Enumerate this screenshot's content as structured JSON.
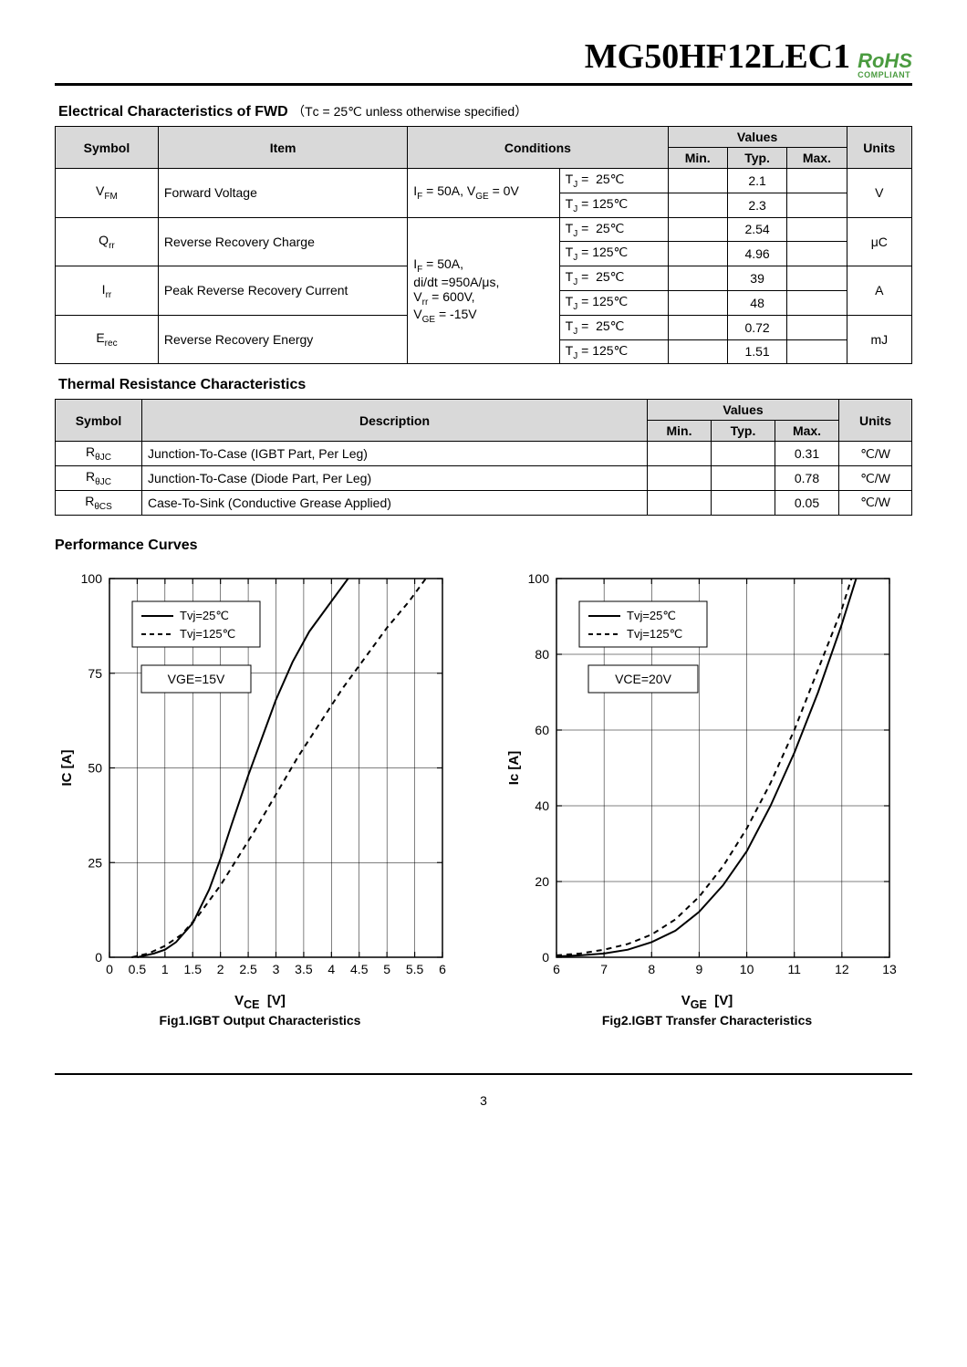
{
  "header": {
    "part_number": "MG50HF12LEC1",
    "rohs_main": "RoHS",
    "rohs_sub": "COMPLIANT"
  },
  "fwd_section": {
    "title": "Electrical Characteristics of FWD",
    "note": "（Tᴄ = 25℃ unless otherwise specified）",
    "headers": {
      "symbol": "Symbol",
      "item": "Item",
      "conditions": "Conditions",
      "values": "Values",
      "min": "Min.",
      "typ": "Typ.",
      "max": "Max.",
      "units": "Units"
    },
    "cond_shared_1": "I_F = 50A, V_GE = 0V",
    "cond_shared_2a": "I_F = 50A,",
    "cond_shared_2b": "di/dt =950A/μs,",
    "cond_shared_2c": "V_rr = 600V,",
    "cond_shared_2d": "V_GE = -15V",
    "tj25": "T_J =  25℃",
    "tj125": "T_J = 125℃",
    "rows": [
      {
        "symbol": "V_FM",
        "item": "Forward Voltage",
        "typ25": "2.1",
        "typ125": "2.3",
        "units": "V"
      },
      {
        "symbol": "Q_rr",
        "item": "Reverse Recovery Charge",
        "typ25": "2.54",
        "typ125": "4.96",
        "units": "μC"
      },
      {
        "symbol": "I_rr",
        "item": "Peak Reverse Recovery Current",
        "typ25": "39",
        "typ125": "48",
        "units": "A"
      },
      {
        "symbol": "E_rec",
        "item": "Reverse Recovery Energy",
        "typ25": "0.72",
        "typ125": "1.51",
        "units": "mJ"
      }
    ]
  },
  "thermal_section": {
    "title": "Thermal Resistance Characteristics",
    "headers": {
      "symbol": "Symbol",
      "description": "Description",
      "values": "Values",
      "min": "Min.",
      "typ": "Typ.",
      "max": "Max.",
      "units": "Units"
    },
    "rows": [
      {
        "symbol": "R_θJC",
        "description": "Junction-To-Case (IGBT Part, Per Leg)",
        "max": "0.31",
        "units": "℃/W"
      },
      {
        "symbol": "R_θJC",
        "description": "Junction-To-Case (Diode Part, Per Leg)",
        "max": "0.78",
        "units": "℃/W"
      },
      {
        "symbol": "R_θCS",
        "description": "Case-To-Sink (Conductive Grease Applied)",
        "max": "0.05",
        "units": "℃/W"
      }
    ]
  },
  "curves_title": "Performance Curves",
  "chart1": {
    "type": "line",
    "caption": "Fig1.IGBT Output Characteristics",
    "xlabel": "V_CE  [V]",
    "ylabel": "I_C  [A]",
    "xlim": [
      0,
      6
    ],
    "ylim": [
      0,
      100
    ],
    "xtick_step": 0.5,
    "ytick_step": 25,
    "xticks": [
      "0",
      "0.5",
      "1",
      "1.5",
      "2",
      "2.5",
      "3",
      "3.5",
      "4",
      "4.5",
      "5",
      "5.5",
      "6"
    ],
    "yticks": [
      "0",
      "25",
      "50",
      "75",
      "100"
    ],
    "legend": [
      "T_vj=25℃",
      "T_vj=125℃"
    ],
    "box_label": "V_GE=15V",
    "grid_color": "#000000",
    "background": "#ffffff",
    "series": [
      {
        "name": "25C",
        "style": "solid",
        "color": "#000000",
        "points": [
          [
            0.5,
            0
          ],
          [
            0.8,
            1
          ],
          [
            1.0,
            2
          ],
          [
            1.2,
            4
          ],
          [
            1.5,
            9
          ],
          [
            1.8,
            18
          ],
          [
            2.0,
            26
          ],
          [
            2.2,
            35
          ],
          [
            2.5,
            48
          ],
          [
            2.8,
            60
          ],
          [
            3.0,
            68
          ],
          [
            3.3,
            78
          ],
          [
            3.6,
            86
          ],
          [
            4.0,
            94
          ],
          [
            4.3,
            100
          ]
        ]
      },
      {
        "name": "125C",
        "style": "dashed",
        "color": "#000000",
        "points": [
          [
            0.4,
            0
          ],
          [
            0.7,
            1
          ],
          [
            1.0,
            3
          ],
          [
            1.3,
            6
          ],
          [
            1.6,
            11
          ],
          [
            2.0,
            19
          ],
          [
            2.3,
            26
          ],
          [
            2.6,
            33
          ],
          [
            3.0,
            43
          ],
          [
            3.4,
            53
          ],
          [
            3.8,
            62
          ],
          [
            4.2,
            71
          ],
          [
            4.6,
            79
          ],
          [
            5.0,
            87
          ],
          [
            5.4,
            94
          ],
          [
            5.7,
            100
          ]
        ]
      }
    ]
  },
  "chart2": {
    "type": "line",
    "caption": "Fig2.IGBT Transfer Characteristics",
    "xlabel": "V_GE  [V]",
    "ylabel": "I_c [A]",
    "xlim": [
      6,
      13
    ],
    "ylim": [
      0,
      100
    ],
    "xtick_step": 1,
    "ytick_step": 20,
    "xticks": [
      "6",
      "7",
      "8",
      "9",
      "10",
      "11",
      "12",
      "13"
    ],
    "yticks": [
      "0",
      "20",
      "40",
      "60",
      "80",
      "100"
    ],
    "legend": [
      "T_vj=25℃",
      "T_vj=125℃"
    ],
    "box_label": "V_CE=20V",
    "grid_color": "#000000",
    "background": "#ffffff",
    "series": [
      {
        "name": "25C",
        "style": "solid",
        "color": "#000000",
        "points": [
          [
            6.0,
            0.2
          ],
          [
            6.5,
            0.5
          ],
          [
            7.0,
            1
          ],
          [
            7.5,
            2
          ],
          [
            8.0,
            4
          ],
          [
            8.5,
            7
          ],
          [
            9.0,
            12
          ],
          [
            9.5,
            19
          ],
          [
            10.0,
            28
          ],
          [
            10.5,
            40
          ],
          [
            11.0,
            54
          ],
          [
            11.5,
            70
          ],
          [
            12.0,
            88
          ],
          [
            12.3,
            100
          ]
        ]
      },
      {
        "name": "125C",
        "style": "dashed",
        "color": "#000000",
        "points": [
          [
            6.0,
            0.5
          ],
          [
            6.5,
            1
          ],
          [
            7.0,
            2
          ],
          [
            7.5,
            3.5
          ],
          [
            8.0,
            6
          ],
          [
            8.5,
            10
          ],
          [
            9.0,
            16
          ],
          [
            9.5,
            24
          ],
          [
            10.0,
            34
          ],
          [
            10.5,
            46
          ],
          [
            11.0,
            60
          ],
          [
            11.5,
            76
          ],
          [
            12.0,
            92
          ],
          [
            12.2,
            100
          ]
        ]
      }
    ]
  },
  "page_number": "3"
}
